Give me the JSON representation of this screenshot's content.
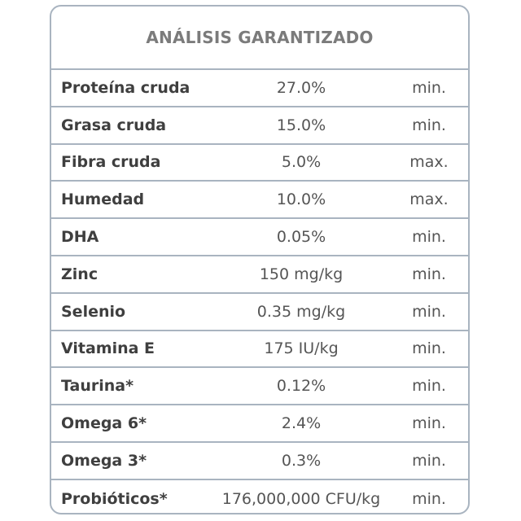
{
  "table": {
    "title": "ANÁLISIS GARANTIZADO",
    "rows": [
      {
        "name": "Proteína cruda",
        "value": "27.0%",
        "qualifier": "min."
      },
      {
        "name": "Grasa cruda",
        "value": "15.0%",
        "qualifier": "min."
      },
      {
        "name": "Fibra cruda",
        "value": "5.0%",
        "qualifier": "max."
      },
      {
        "name": "Humedad",
        "value": "10.0%",
        "qualifier": "max."
      },
      {
        "name": "DHA",
        "value": "0.05%",
        "qualifier": "min."
      },
      {
        "name": "Zinc",
        "value": "150 mg/kg",
        "qualifier": "min."
      },
      {
        "name": "Selenio",
        "value": "0.35 mg/kg",
        "qualifier": "min."
      },
      {
        "name": "Vitamina E",
        "value": "175 IU/kg",
        "qualifier": "min."
      },
      {
        "name": "Taurina*",
        "value": "0.12%",
        "qualifier": "min."
      },
      {
        "name": "Omega 6*",
        "value": "2.4%",
        "qualifier": "min."
      },
      {
        "name": "Omega 3*",
        "value": "0.3%",
        "qualifier": "min."
      },
      {
        "name": "Probióticos*",
        "value": "176,000,000 CFU/kg",
        "qualifier": "min."
      }
    ]
  }
}
